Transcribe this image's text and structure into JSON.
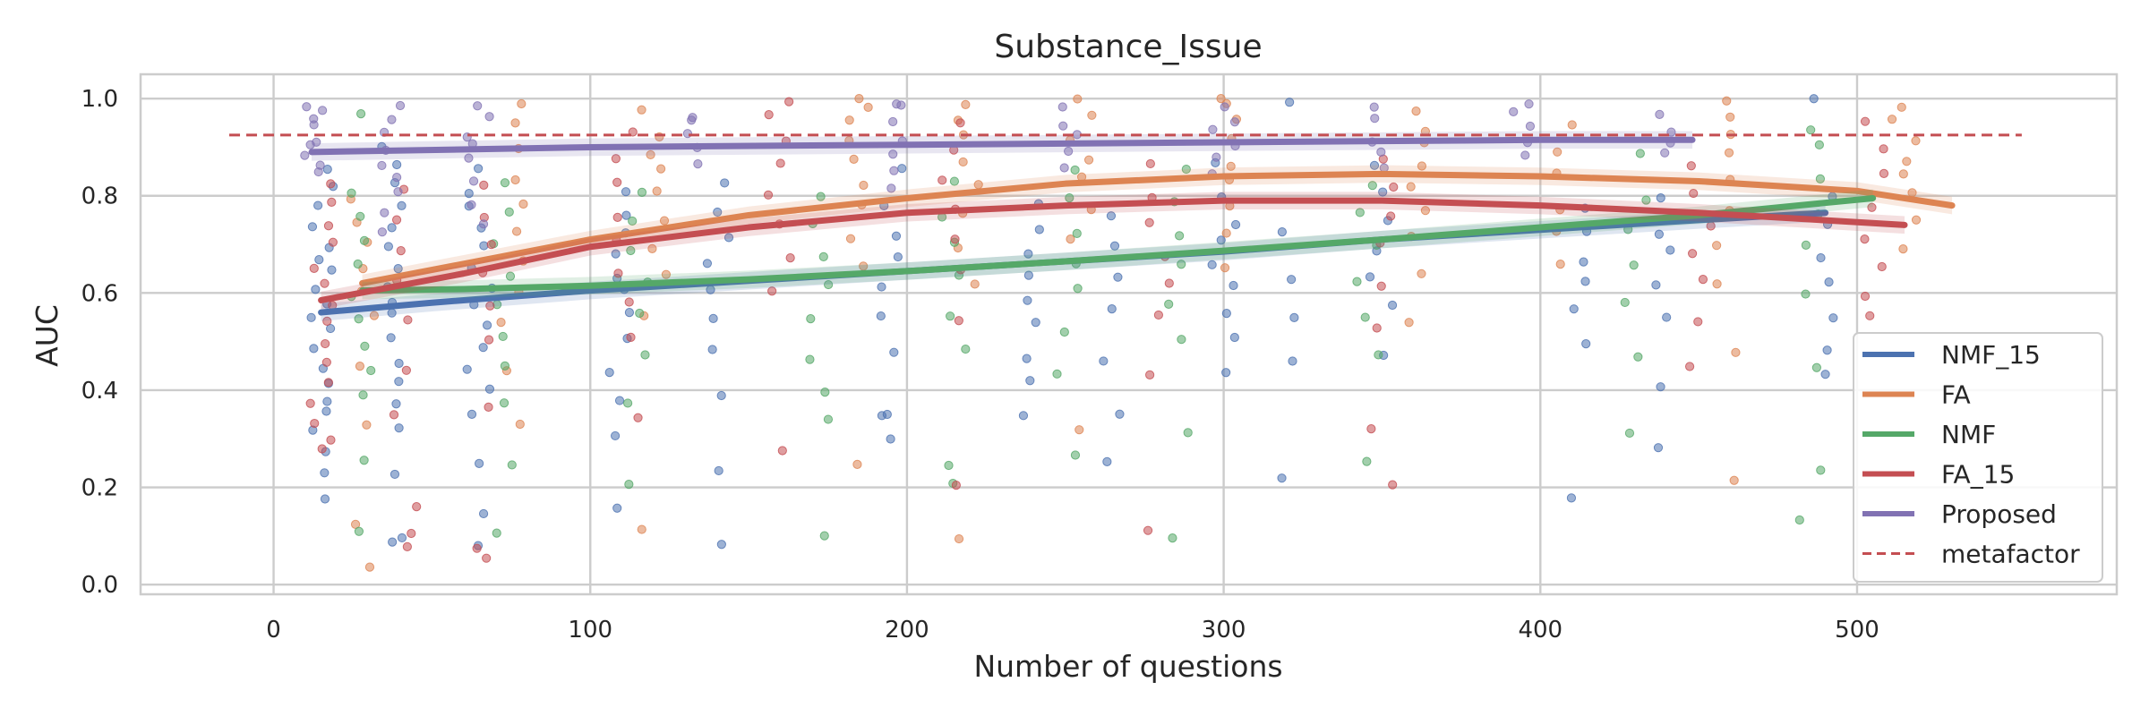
{
  "chart_data": {
    "type": "scatter",
    "title": "Substance_Issue",
    "xlabel": "Number of questions",
    "ylabel": "AUC",
    "xlim": [
      -42,
      582
    ],
    "ylim": [
      -0.02,
      1.05
    ],
    "xticks": [
      0,
      100,
      200,
      300,
      400,
      500
    ],
    "yticks": [
      0.0,
      0.2,
      0.4,
      0.6,
      0.8,
      1.0
    ],
    "xtick_labels": [
      "0",
      "100",
      "200",
      "300",
      "400",
      "500"
    ],
    "ytick_labels": [
      "0.0",
      "0.2",
      "0.4",
      "0.6",
      "0.8",
      "1.0"
    ],
    "grid": true,
    "legend_position": "lower-right",
    "series": [
      {
        "name": "NMF_15",
        "color": "#4c72b0",
        "trend_x": [
          15,
          50,
          100,
          150,
          200,
          250,
          300,
          350,
          400,
          450,
          490
        ],
        "trend_y": [
          0.56,
          0.58,
          0.605,
          0.625,
          0.645,
          0.665,
          0.685,
          0.71,
          0.73,
          0.75,
          0.765
        ]
      },
      {
        "name": "FA",
        "color": "#dd8452",
        "trend_x": [
          28,
          60,
          100,
          150,
          200,
          250,
          300,
          350,
          400,
          450,
          500,
          530
        ],
        "trend_y": [
          0.62,
          0.66,
          0.71,
          0.76,
          0.795,
          0.825,
          0.84,
          0.845,
          0.84,
          0.83,
          0.81,
          0.78
        ]
      },
      {
        "name": "NMF",
        "color": "#55a868",
        "trend_x": [
          28,
          60,
          100,
          150,
          200,
          250,
          300,
          350,
          400,
          450,
          505
        ],
        "trend_y": [
          0.605,
          0.608,
          0.615,
          0.628,
          0.645,
          0.665,
          0.687,
          0.71,
          0.735,
          0.76,
          0.795
        ]
      },
      {
        "name": "FA_15",
        "color": "#c44e52",
        "trend_x": [
          15,
          60,
          100,
          150,
          200,
          250,
          300,
          350,
          400,
          450,
          515
        ],
        "trend_y": [
          0.585,
          0.64,
          0.695,
          0.735,
          0.765,
          0.78,
          0.79,
          0.79,
          0.78,
          0.765,
          0.74
        ]
      },
      {
        "name": "Proposed",
        "color": "#8172b3",
        "trend_x": [
          12,
          100,
          200,
          300,
          400,
          448
        ],
        "trend_y": [
          0.89,
          0.9,
          0.905,
          0.91,
          0.915,
          0.915
        ]
      },
      {
        "name": "metafactor",
        "color": "#c44e52",
        "style": "dashed",
        "trend_x": [
          -14,
          552
        ],
        "trend_y": [
          0.925,
          0.925
        ]
      }
    ],
    "scatter_groups": [
      {
        "series": "NMF_15",
        "x": 15,
        "values": [
          0.18,
          0.22,
          0.27,
          0.31,
          0.35,
          0.38,
          0.42,
          0.45,
          0.48,
          0.52,
          0.55,
          0.58,
          0.61,
          0.64,
          0.67,
          0.7,
          0.74,
          0.78,
          0.82,
          0.86
        ]
      },
      {
        "series": "NMF_15",
        "x": 38,
        "values": [
          0.08,
          0.1,
          0.22,
          0.33,
          0.38,
          0.42,
          0.46,
          0.51,
          0.55,
          0.59,
          0.62,
          0.66,
          0.7,
          0.74,
          0.78,
          0.82,
          0.86,
          0.9
        ]
      },
      {
        "series": "NMF_15",
        "x": 65,
        "values": [
          0.08,
          0.15,
          0.24,
          0.35,
          0.4,
          0.44,
          0.49,
          0.53,
          0.57,
          0.61,
          0.65,
          0.69,
          0.73,
          0.77,
          0.81,
          0.85
        ]
      },
      {
        "series": "NMF_15",
        "x": 110,
        "values": [
          0.15,
          0.3,
          0.38,
          0.44,
          0.5,
          0.55,
          0.6,
          0.64,
          0.68,
          0.72,
          0.76,
          0.8
        ]
      },
      {
        "series": "NMF_15",
        "x": 140,
        "values": [
          0.09,
          0.24,
          0.39,
          0.48,
          0.55,
          0.61,
          0.66,
          0.71,
          0.76,
          0.83
        ]
      },
      {
        "series": "NMF_15",
        "x": 195,
        "values": [
          0.3,
          0.34,
          0.36,
          0.48,
          0.56,
          0.62,
          0.67,
          0.72,
          0.78,
          0.86
        ]
      },
      {
        "series": "NMF_15",
        "x": 240,
        "values": [
          0.34,
          0.41,
          0.47,
          0.53,
          0.58,
          0.63,
          0.68,
          0.73,
          0.78
        ]
      },
      {
        "series": "NMF_15",
        "x": 265,
        "values": [
          0.26,
          0.36,
          0.46,
          0.57,
          0.63,
          0.7,
          0.76
        ]
      },
      {
        "series": "NMF_15",
        "x": 300,
        "values": [
          0.44,
          0.5,
          0.56,
          0.62,
          0.66,
          0.7,
          0.75,
          0.8,
          0.86
        ]
      },
      {
        "series": "NMF_15",
        "x": 320,
        "values": [
          0.21,
          0.45,
          0.55,
          0.62,
          0.72,
          0.99
        ]
      },
      {
        "series": "NMF_15",
        "x": 350,
        "values": [
          0.48,
          0.57,
          0.63,
          0.68,
          0.74,
          0.8,
          0.87
        ]
      },
      {
        "series": "NMF_15",
        "x": 412,
        "values": [
          0.17,
          0.5,
          0.56,
          0.62,
          0.67,
          0.72,
          0.78
        ]
      },
      {
        "series": "NMF_15",
        "x": 440,
        "values": [
          0.29,
          0.41,
          0.55,
          0.62,
          0.68,
          0.73,
          0.79
        ]
      },
      {
        "series": "NMF_15",
        "x": 490,
        "values": [
          0.43,
          0.49,
          0.55,
          0.62,
          0.68,
          0.74,
          0.8,
          0.99
        ]
      },
      {
        "series": "FA",
        "x": 28,
        "values": [
          0.03,
          0.13,
          0.32,
          0.45,
          0.55,
          0.6,
          0.65,
          0.7,
          0.75,
          0.8
        ]
      },
      {
        "series": "FA",
        "x": 75,
        "values": [
          0.33,
          0.45,
          0.53,
          0.6,
          0.66,
          0.72,
          0.78,
          0.84,
          0.9,
          0.95,
          0.99
        ]
      },
      {
        "series": "FA",
        "x": 120,
        "values": [
          0.11,
          0.56,
          0.64,
          0.7,
          0.75,
          0.8,
          0.85,
          0.89,
          0.93,
          0.97
        ]
      },
      {
        "series": "FA",
        "x": 185,
        "values": [
          0.24,
          0.66,
          0.72,
          0.78,
          0.83,
          0.88,
          0.92,
          0.96,
          0.99,
          1.0
        ]
      },
      {
        "series": "FA",
        "x": 220,
        "values": [
          0.09,
          0.62,
          0.7,
          0.76,
          0.82,
          0.87,
          0.92,
          0.96,
          0.99
        ]
      },
      {
        "series": "FA",
        "x": 255,
        "values": [
          0.32,
          0.72,
          0.78,
          0.83,
          0.88,
          0.92,
          0.96,
          0.99
        ]
      },
      {
        "series": "FA",
        "x": 302,
        "values": [
          0.66,
          0.72,
          0.78,
          0.83,
          0.87,
          0.91,
          0.95,
          0.99,
          1.0
        ]
      },
      {
        "series": "FA",
        "x": 360,
        "values": [
          0.54,
          0.64,
          0.71,
          0.77,
          0.82,
          0.86,
          0.9,
          0.94,
          0.97
        ]
      },
      {
        "series": "FA",
        "x": 408,
        "values": [
          0.66,
          0.72,
          0.78,
          0.84,
          0.9,
          0.95
        ]
      },
      {
        "series": "FA",
        "x": 458,
        "values": [
          0.22,
          0.48,
          0.62,
          0.7,
          0.77,
          0.83,
          0.88,
          0.93,
          0.97,
          1.0
        ]
      },
      {
        "series": "FA",
        "x": 515,
        "values": [
          0.7,
          0.75,
          0.8,
          0.84,
          0.88,
          0.92,
          0.96,
          0.99
        ]
      },
      {
        "series": "NMF",
        "x": 28,
        "values": [
          0.11,
          0.25,
          0.4,
          0.45,
          0.5,
          0.55,
          0.6,
          0.65,
          0.7,
          0.75,
          0.8,
          0.97
        ]
      },
      {
        "series": "NMF",
        "x": 72,
        "values": [
          0.1,
          0.25,
          0.38,
          0.45,
          0.52,
          0.58,
          0.64,
          0.7,
          0.76,
          0.82
        ]
      },
      {
        "series": "NMF",
        "x": 115,
        "values": [
          0.2,
          0.37,
          0.48,
          0.56,
          0.62,
          0.68,
          0.74,
          0.8
        ]
      },
      {
        "series": "NMF",
        "x": 172,
        "values": [
          0.11,
          0.33,
          0.4,
          0.47,
          0.55,
          0.62,
          0.68,
          0.74,
          0.8
        ]
      },
      {
        "series": "NMF",
        "x": 215,
        "values": [
          0.21,
          0.25,
          0.48,
          0.56,
          0.63,
          0.7,
          0.76,
          0.82
        ]
      },
      {
        "series": "NMF",
        "x": 250,
        "values": [
          0.26,
          0.43,
          0.52,
          0.6,
          0.67,
          0.73,
          0.79,
          0.85
        ]
      },
      {
        "series": "NMF",
        "x": 285,
        "values": [
          0.1,
          0.31,
          0.5,
          0.58,
          0.65,
          0.72,
          0.78,
          0.85
        ]
      },
      {
        "series": "NMF",
        "x": 345,
        "values": [
          0.26,
          0.47,
          0.55,
          0.62,
          0.69,
          0.76,
          0.83
        ]
      },
      {
        "series": "NMF",
        "x": 430,
        "values": [
          0.31,
          0.47,
          0.58,
          0.66,
          0.73,
          0.8,
          0.88
        ]
      },
      {
        "series": "NMF",
        "x": 485,
        "values": [
          0.13,
          0.23,
          0.45,
          0.6,
          0.7,
          0.77,
          0.84,
          0.9,
          0.93
        ]
      },
      {
        "series": "FA_15",
        "x": 15,
        "values": [
          0.27,
          0.3,
          0.34,
          0.38,
          0.42,
          0.46,
          0.5,
          0.54,
          0.58,
          0.62,
          0.66,
          0.7,
          0.74,
          0.78,
          0.82
        ]
      },
      {
        "series": "FA_15",
        "x": 42,
        "values": [
          0.07,
          0.1,
          0.17,
          0.35,
          0.45,
          0.55,
          0.62,
          0.68,
          0.75,
          0.82
        ]
      },
      {
        "series": "FA_15",
        "x": 68,
        "values": [
          0.05,
          0.08,
          0.37,
          0.5,
          0.58,
          0.64,
          0.7,
          0.76,
          0.82
        ]
      },
      {
        "series": "FA_15",
        "x": 112,
        "values": [
          0.35,
          0.5,
          0.58,
          0.64,
          0.7,
          0.76,
          0.82,
          0.88,
          0.94
        ]
      },
      {
        "series": "FA_15",
        "x": 160,
        "values": [
          0.27,
          0.6,
          0.68,
          0.74,
          0.8,
          0.86,
          0.92,
          0.97,
          1.0
        ]
      },
      {
        "series": "FA_15",
        "x": 215,
        "values": [
          0.2,
          0.54,
          0.64,
          0.72,
          0.78,
          0.84,
          0.9,
          0.96
        ]
      },
      {
        "series": "FA_15",
        "x": 280,
        "values": [
          0.12,
          0.43,
          0.55,
          0.62,
          0.68,
          0.74,
          0.8,
          0.86
        ]
      },
      {
        "series": "FA_15",
        "x": 350,
        "values": [
          0.21,
          0.33,
          0.52,
          0.62,
          0.7,
          0.76,
          0.82,
          0.88
        ]
      },
      {
        "series": "FA_15",
        "x": 450,
        "values": [
          0.45,
          0.55,
          0.62,
          0.68,
          0.74,
          0.8,
          0.86
        ]
      },
      {
        "series": "FA_15",
        "x": 505,
        "values": [
          0.55,
          0.59,
          0.66,
          0.72,
          0.78,
          0.84,
          0.9,
          0.96
        ]
      },
      {
        "series": "Proposed",
        "x": 12,
        "values": [
          0.84,
          0.86,
          0.88,
          0.9,
          0.92,
          0.94,
          0.96,
          0.98,
          0.99
        ]
      },
      {
        "series": "Proposed",
        "x": 38,
        "values": [
          0.72,
          0.76,
          0.8,
          0.84,
          0.87,
          0.9,
          0.93,
          0.96,
          0.99
        ]
      },
      {
        "series": "Proposed",
        "x": 65,
        "values": [
          0.74,
          0.79,
          0.83,
          0.87,
          0.9,
          0.93,
          0.96,
          0.99
        ]
      },
      {
        "series": "Proposed",
        "x": 130,
        "values": [
          0.86,
          0.89,
          0.92,
          0.95,
          0.97
        ]
      },
      {
        "series": "Proposed",
        "x": 195,
        "values": [
          0.82,
          0.86,
          0.89,
          0.92,
          0.95,
          0.98,
          0.99
        ]
      },
      {
        "series": "Proposed",
        "x": 250,
        "values": [
          0.86,
          0.89,
          0.92,
          0.95,
          0.98
        ]
      },
      {
        "series": "Proposed",
        "x": 300,
        "values": [
          0.84,
          0.87,
          0.9,
          0.93,
          0.96,
          0.98
        ]
      },
      {
        "series": "Proposed",
        "x": 350,
        "values": [
          0.86,
          0.89,
          0.92,
          0.95,
          0.98
        ]
      },
      {
        "series": "Proposed",
        "x": 395,
        "values": [
          0.88,
          0.91,
          0.94,
          0.97,
          0.99
        ]
      },
      {
        "series": "Proposed",
        "x": 440,
        "values": [
          0.88,
          0.91,
          0.94,
          0.97
        ]
      }
    ]
  }
}
